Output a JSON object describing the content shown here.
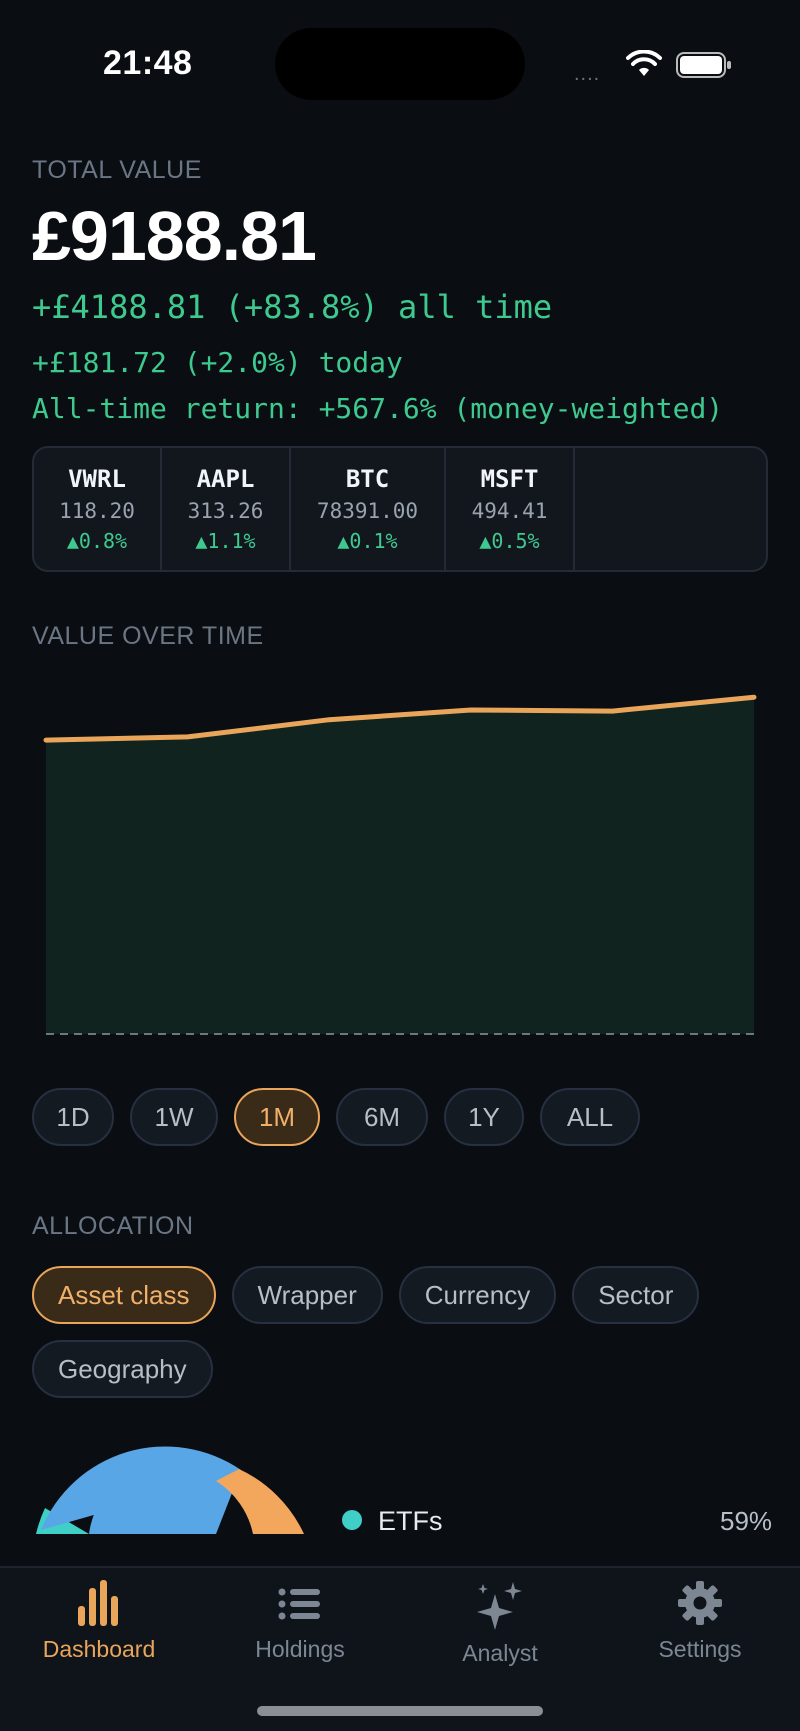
{
  "status": {
    "time": "21:48"
  },
  "portfolio": {
    "total_label": "TOTAL VALUE",
    "total_value": "£9188.81",
    "all_time": "+£4188.81 (+83.8%) all time",
    "today": "+£181.72 (+2.0%) today",
    "mwr": "All-time return: +567.6% (money-weighted)"
  },
  "ticker": [
    {
      "symbol": "VWRL",
      "price": "118.20",
      "change": "▲0.8%"
    },
    {
      "symbol": "AAPL",
      "price": "313.26",
      "change": "▲1.1%"
    },
    {
      "symbol": "BTC",
      "price": "78391.00",
      "change": "▲0.1%"
    },
    {
      "symbol": "MSFT",
      "price": "494.41",
      "change": "▲0.5%"
    }
  ],
  "chart_section": {
    "label": "VALUE OVER TIME"
  },
  "chart_data": {
    "type": "area",
    "title": "",
    "xlabel": "",
    "ylabel": "",
    "values": [
      8740,
      8770,
      8930,
      9020,
      9010,
      9140
    ],
    "ylim": [
      6000,
      9300
    ],
    "grid": false,
    "line_color": "#e9a55a",
    "fill_color": "#11231f"
  },
  "ranges": [
    {
      "label": "1D",
      "active": false
    },
    {
      "label": "1W",
      "active": false
    },
    {
      "label": "1M",
      "active": true
    },
    {
      "label": "6M",
      "active": false
    },
    {
      "label": "1Y",
      "active": false
    },
    {
      "label": "ALL",
      "active": false
    }
  ],
  "allocation": {
    "label": "ALLOCATION",
    "groups": [
      "Asset class",
      "Wrapper",
      "Currency",
      "Sector",
      "Geography"
    ],
    "active_group": "Asset class",
    "legend": [
      {
        "name": "ETFs",
        "pct": "59%",
        "color": "#3fcfc6"
      }
    ],
    "donut_colors": [
      "#3fcfc6",
      "#58a6e6",
      "#f2a75c"
    ]
  },
  "tabs": [
    {
      "label": "Dashboard",
      "icon": "bar-chart-icon",
      "active": true
    },
    {
      "label": "Holdings",
      "icon": "list-icon",
      "active": false
    },
    {
      "label": "Analyst",
      "icon": "sparkles-icon",
      "active": false
    },
    {
      "label": "Settings",
      "icon": "gear-icon",
      "active": false
    }
  ],
  "colors": {
    "accent": "#e9a55a",
    "positive": "#3ec98f",
    "background": "#0a0d12"
  }
}
